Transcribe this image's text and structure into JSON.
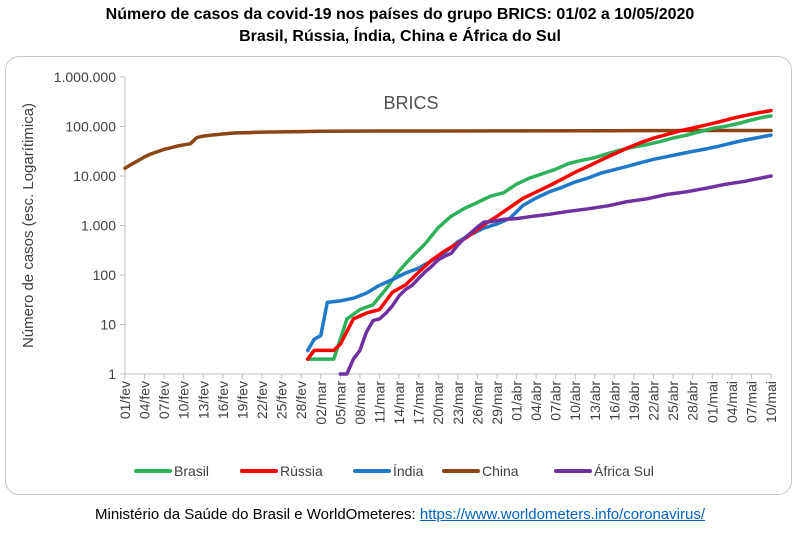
{
  "page": {
    "title_line1": "Número de casos da covid-19 nos países do grupo BRICS: 01/02 a 10/05/2020",
    "title_line2": "Brasil, Rússia, Índia, China e África do Sul",
    "source_label": "Ministério da Saúde do Brasil e WorldOmeteres:",
    "source_link": "https://www.worldometers.info/coronavirus/"
  },
  "colors": {
    "Brasil": "#2eb15b",
    "Rússia": "#ff0000",
    "Índia": "#1f78c8",
    "China": "#8b4513",
    "África Sul": "#7030a0",
    "axis": "#bfbfbf",
    "text": "#404040"
  },
  "chart_data": {
    "type": "line",
    "title": "BRICS",
    "xlabel": "",
    "ylabel": "Número de casos (esc. Logarítimica)",
    "y_scale": "log",
    "ylim": [
      1,
      1000000
    ],
    "y_ticks": [
      1,
      10,
      100,
      1000,
      10000,
      100000,
      1000000
    ],
    "y_tick_labels": [
      "1",
      "10",
      "100",
      "1.000",
      "10.000",
      "100.000",
      "1.000.000"
    ],
    "grid": false,
    "legend_position": "bottom",
    "x_start": "01/fev",
    "x_end": "10/mai",
    "x_tick_labels": [
      "01/fev",
      "04/fev",
      "07/fev",
      "10/fev",
      "13/fev",
      "16/fev",
      "19/fev",
      "22/fev",
      "25/fev",
      "28/fev",
      "02/mar",
      "05/mar",
      "08/mar",
      "11/mar",
      "14/mar",
      "17/mar",
      "20/mar",
      "23/mar",
      "26/mar",
      "29/mar",
      "01/abr",
      "04/abr",
      "07/abr",
      "10/abr",
      "13/abr",
      "16/abr",
      "19/abr",
      "22/abr",
      "25/abr",
      "28/abr",
      "01/mai",
      "04/mai",
      "07/mai",
      "10/mai"
    ],
    "series": [
      {
        "name": "Brasil",
        "points": [
          [
            "29/fev",
            2
          ],
          [
            "04/mar",
            2
          ],
          [
            "06/mar",
            13
          ],
          [
            "08/mar",
            20
          ],
          [
            "10/mar",
            25
          ],
          [
            "12/mar",
            52
          ],
          [
            "14/mar",
            121
          ],
          [
            "16/mar",
            234
          ],
          [
            "18/mar",
            428
          ],
          [
            "20/mar",
            904
          ],
          [
            "22/mar",
            1546
          ],
          [
            "24/mar",
            2201
          ],
          [
            "26/mar",
            2915
          ],
          [
            "28/mar",
            3904
          ],
          [
            "30/mar",
            4579
          ],
          [
            "01/abr",
            6836
          ],
          [
            "03/abr",
            9056
          ],
          [
            "05/abr",
            11130
          ],
          [
            "07/abr",
            13717
          ],
          [
            "09/abr",
            17857
          ],
          [
            "11/abr",
            20727
          ],
          [
            "13/abr",
            23430
          ],
          [
            "15/abr",
            28320
          ],
          [
            "17/abr",
            33682
          ],
          [
            "19/abr",
            38654
          ],
          [
            "21/abr",
            43079
          ],
          [
            "23/abr",
            49492
          ],
          [
            "25/abr",
            58509
          ],
          [
            "27/abr",
            66501
          ],
          [
            "29/abr",
            78162
          ],
          [
            "01/mai",
            91589
          ],
          [
            "03/mai",
            101147
          ],
          [
            "05/mai",
            114715
          ],
          [
            "07/mai",
            135106
          ],
          [
            "09/mai",
            155939
          ],
          [
            "10/mai",
            162699
          ]
        ]
      },
      {
        "name": "Rússia",
        "points": [
          [
            "29/fev",
            2
          ],
          [
            "01/mar",
            3
          ],
          [
            "04/mar",
            3
          ],
          [
            "05/mar",
            4
          ],
          [
            "07/mar",
            13
          ],
          [
            "09/mar",
            17
          ],
          [
            "11/mar",
            20
          ],
          [
            "13/mar",
            45
          ],
          [
            "15/mar",
            63
          ],
          [
            "17/mar",
            114
          ],
          [
            "19/mar",
            199
          ],
          [
            "21/mar",
            306
          ],
          [
            "23/mar",
            438
          ],
          [
            "25/mar",
            658
          ],
          [
            "27/mar",
            1036
          ],
          [
            "29/mar",
            1534
          ],
          [
            "31/mar",
            2337
          ],
          [
            "02/abr",
            3548
          ],
          [
            "04/abr",
            4731
          ],
          [
            "06/abr",
            6343
          ],
          [
            "08/abr",
            8672
          ],
          [
            "10/abr",
            11917
          ],
          [
            "12/abr",
            15770
          ],
          [
            "14/abr",
            21102
          ],
          [
            "16/abr",
            27938
          ],
          [
            "18/abr",
            36793
          ],
          [
            "20/abr",
            47121
          ],
          [
            "22/abr",
            57999
          ],
          [
            "24/abr",
            68622
          ],
          [
            "26/abr",
            80949
          ],
          [
            "28/abr",
            93558
          ],
          [
            "30/abr",
            106498
          ],
          [
            "02/mai",
            124054
          ],
          [
            "04/mai",
            145268
          ],
          [
            "06/mai",
            165929
          ],
          [
            "08/mai",
            187859
          ],
          [
            "10/mai",
            209688
          ]
        ]
      },
      {
        "name": "Índia",
        "points": [
          [
            "29/fev",
            3
          ],
          [
            "01/mar",
            5
          ],
          [
            "02/mar",
            6
          ],
          [
            "03/mar",
            28
          ],
          [
            "05/mar",
            30
          ],
          [
            "07/mar",
            34
          ],
          [
            "09/mar",
            43
          ],
          [
            "11/mar",
            62
          ],
          [
            "13/mar",
            81
          ],
          [
            "15/mar",
            110
          ],
          [
            "17/mar",
            137
          ],
          [
            "19/mar",
            195
          ],
          [
            "21/mar",
            283
          ],
          [
            "23/mar",
            468
          ],
          [
            "25/mar",
            657
          ],
          [
            "27/mar",
            887
          ],
          [
            "29/mar",
            1071
          ],
          [
            "31/mar",
            1397
          ],
          [
            "02/abr",
            2543
          ],
          [
            "04/abr",
            3588
          ],
          [
            "06/abr",
            4778
          ],
          [
            "08/abr",
            5916
          ],
          [
            "10/abr",
            7600
          ],
          [
            "12/abr",
            9152
          ],
          [
            "14/abr",
            11487
          ],
          [
            "16/abr",
            13387
          ],
          [
            "18/abr",
            15722
          ],
          [
            "20/abr",
            18539
          ],
          [
            "22/abr",
            21700
          ],
          [
            "24/abr",
            24530
          ],
          [
            "26/abr",
            27890
          ],
          [
            "28/abr",
            31332
          ],
          [
            "30/abr",
            35043
          ],
          [
            "02/mai",
            39980
          ],
          [
            "04/mai",
            46437
          ],
          [
            "06/mai",
            53045
          ],
          [
            "08/mai",
            59765
          ],
          [
            "10/mai",
            67161
          ]
        ]
      },
      {
        "name": "China",
        "points": [
          [
            "01/fev",
            14380
          ],
          [
            "02/fev",
            17205
          ],
          [
            "03/fev",
            20440
          ],
          [
            "04/fev",
            24324
          ],
          [
            "05/fev",
            28018
          ],
          [
            "06/fev",
            31161
          ],
          [
            "07/fev",
            34546
          ],
          [
            "08/fev",
            37198
          ],
          [
            "09/fev",
            40171
          ],
          [
            "10/fev",
            42638
          ],
          [
            "11/fev",
            44653
          ],
          [
            "12/fev",
            59804
          ],
          [
            "13/fev",
            63851
          ],
          [
            "14/fev",
            66492
          ],
          [
            "15/fev",
            68500
          ],
          [
            "16/fev",
            70548
          ],
          [
            "17/fev",
            72436
          ],
          [
            "18/fev",
            74185
          ],
          [
            "19/fev",
            74576
          ],
          [
            "20/fev",
            75465
          ],
          [
            "22/fev",
            76936
          ],
          [
            "25/fev",
            77658
          ],
          [
            "28/fev",
            78824
          ],
          [
            "02/mar",
            80151
          ],
          [
            "06/mar",
            80651
          ],
          [
            "12/mar",
            80932
          ],
          [
            "20/mar",
            81250
          ],
          [
            "31/mar",
            81554
          ],
          [
            "15/abr",
            82295
          ],
          [
            "30/abr",
            82862
          ],
          [
            "10/mai",
            82901
          ]
        ]
      },
      {
        "name": "África Sul",
        "points": [
          [
            "05/mar",
            1
          ],
          [
            "06/mar",
            1
          ],
          [
            "07/mar",
            2
          ],
          [
            "08/mar",
            3
          ],
          [
            "09/mar",
            7
          ],
          [
            "10/mar",
            12
          ],
          [
            "11/mar",
            13
          ],
          [
            "12/mar",
            17
          ],
          [
            "13/mar",
            24
          ],
          [
            "14/mar",
            38
          ],
          [
            "15/mar",
            51
          ],
          [
            "16/mar",
            62
          ],
          [
            "17/mar",
            85
          ],
          [
            "18/mar",
            116
          ],
          [
            "19/mar",
            150
          ],
          [
            "20/mar",
            202
          ],
          [
            "21/mar",
            240
          ],
          [
            "22/mar",
            274
          ],
          [
            "23/mar",
            402
          ],
          [
            "24/mar",
            554
          ],
          [
            "25/mar",
            709
          ],
          [
            "26/mar",
            927
          ],
          [
            "27/mar",
            1170
          ],
          [
            "28/mar",
            1187
          ],
          [
            "30/mar",
            1326
          ],
          [
            "01/abr",
            1380
          ],
          [
            "03/abr",
            1505
          ],
          [
            "06/abr",
            1686
          ],
          [
            "09/abr",
            1934
          ],
          [
            "12/abr",
            2173
          ],
          [
            "15/abr",
            2506
          ],
          [
            "18/abr",
            3034
          ],
          [
            "21/abr",
            3465
          ],
          [
            "24/abr",
            4220
          ],
          [
            "27/abr",
            4793
          ],
          [
            "30/abr",
            5647
          ],
          [
            "03/mai",
            6783
          ],
          [
            "06/mai",
            7808
          ],
          [
            "09/mai",
            9420
          ],
          [
            "10/mai",
            10015
          ]
        ]
      }
    ]
  }
}
